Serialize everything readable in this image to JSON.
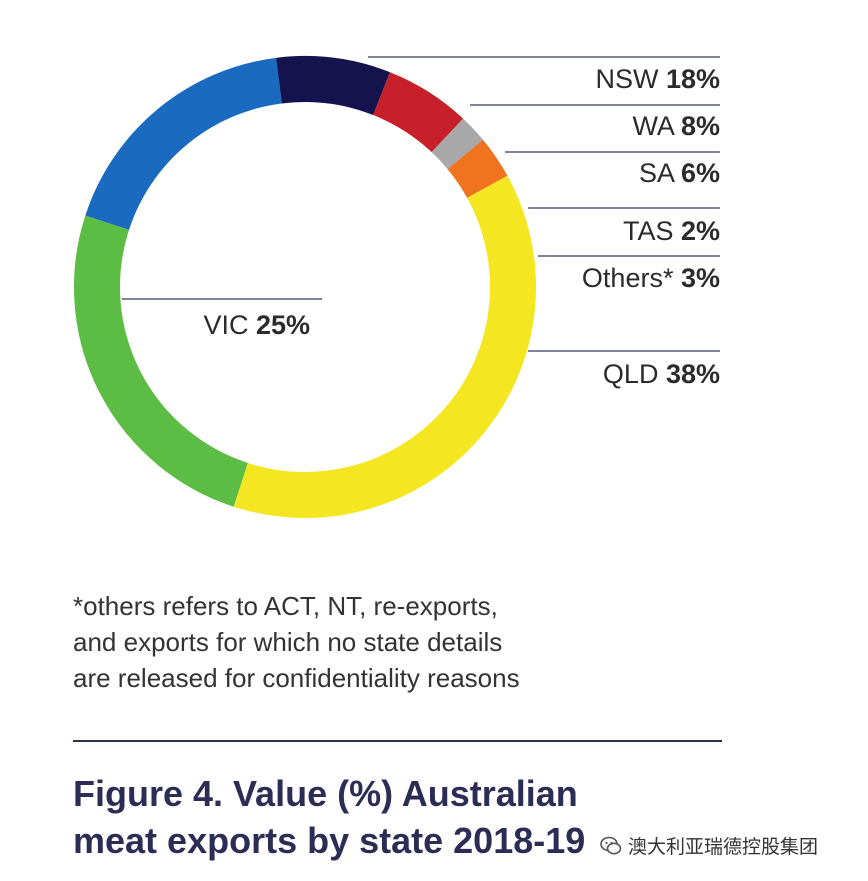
{
  "chart_data": {
    "type": "pie",
    "style": "donut",
    "slices": [
      {
        "name": "NSW",
        "value_label": "18%",
        "value": 18,
        "color": "#1a6bbf"
      },
      {
        "name": "WA",
        "value_label": "8%",
        "value": 8,
        "color": "#14134d"
      },
      {
        "name": "SA",
        "value_label": "6%",
        "value": 6,
        "color": "#c8202b"
      },
      {
        "name": "TAS",
        "value_label": "2%",
        "value": 2,
        "color": "#a8a8a8"
      },
      {
        "name": "Others*",
        "value_label": "3%",
        "value": 3,
        "color": "#f07320"
      },
      {
        "name": "QLD",
        "value_label": "38%",
        "value": 38,
        "color": "#f4e620"
      },
      {
        "name": "VIC",
        "value_label": "25%",
        "value": 25,
        "color": "#5bbd44"
      }
    ]
  },
  "footnote": [
    "*others refers to ACT, NT, re-exports,",
    "and exports for which no state details",
    "are released for confidentiality reasons"
  ],
  "caption": [
    "Figure 4. Value (%) Australian",
    "meat exports by state 2018-19"
  ],
  "watermark": {
    "text": "澳大利亚瑞德控股集团",
    "icon": "wechat-icon"
  }
}
